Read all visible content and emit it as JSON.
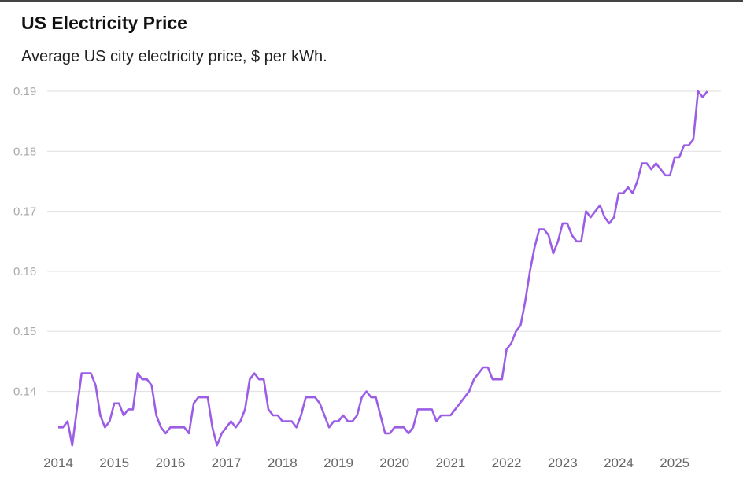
{
  "chart_data": {
    "type": "line",
    "title": "US Electricity Price",
    "subtitle": "Average US city electricity price, $ per kWh.",
    "xlabel": "",
    "ylabel": "",
    "x_start": "2014-01",
    "x_frequency": "monthly",
    "x_tick_labels": [
      "2014",
      "2015",
      "2016",
      "2017",
      "2018",
      "2019",
      "2020",
      "2021",
      "2022",
      "2023",
      "2024",
      "2025"
    ],
    "y_tick_labels": [
      "0.14",
      "0.15",
      "0.16",
      "0.17",
      "0.18",
      "0.19"
    ],
    "ylim": [
      0.13,
      0.19
    ],
    "grid": "horizontal",
    "series": [
      {
        "color": "#9b5de5",
        "values": [
          0.134,
          0.134,
          0.135,
          0.131,
          0.137,
          0.143,
          0.143,
          0.143,
          0.141,
          0.136,
          0.134,
          0.135,
          0.138,
          0.138,
          0.136,
          0.137,
          0.137,
          0.143,
          0.142,
          0.142,
          0.141,
          0.136,
          0.134,
          0.133,
          0.134,
          0.134,
          0.134,
          0.134,
          0.133,
          0.138,
          0.139,
          0.139,
          0.139,
          0.134,
          0.131,
          0.133,
          0.134,
          0.135,
          0.134,
          0.135,
          0.137,
          0.142,
          0.143,
          0.142,
          0.142,
          0.137,
          0.136,
          0.136,
          0.135,
          0.135,
          0.135,
          0.134,
          0.136,
          0.139,
          0.139,
          0.139,
          0.138,
          0.136,
          0.134,
          0.135,
          0.135,
          0.136,
          0.135,
          0.135,
          0.136,
          0.139,
          0.14,
          0.139,
          0.139,
          0.136,
          0.133,
          0.133,
          0.134,
          0.134,
          0.134,
          0.133,
          0.134,
          0.137,
          0.137,
          0.137,
          0.137,
          0.135,
          0.136,
          0.136,
          0.136,
          0.137,
          0.138,
          0.139,
          0.14,
          0.142,
          0.143,
          0.144,
          0.144,
          0.142,
          0.142,
          0.142,
          0.147,
          0.148,
          0.15,
          0.151,
          0.155,
          0.16,
          0.164,
          0.167,
          0.167,
          0.166,
          0.163,
          0.165,
          0.168,
          0.168,
          0.166,
          0.165,
          0.165,
          0.17,
          0.169,
          0.17,
          0.171,
          0.169,
          0.168,
          0.169,
          0.173,
          0.173,
          0.174,
          0.173,
          0.175,
          0.178,
          0.178,
          0.177,
          0.178,
          0.177,
          0.176,
          0.176,
          0.179,
          0.179,
          0.181,
          0.181,
          0.182,
          0.19,
          0.189,
          0.19
        ]
      }
    ]
  }
}
